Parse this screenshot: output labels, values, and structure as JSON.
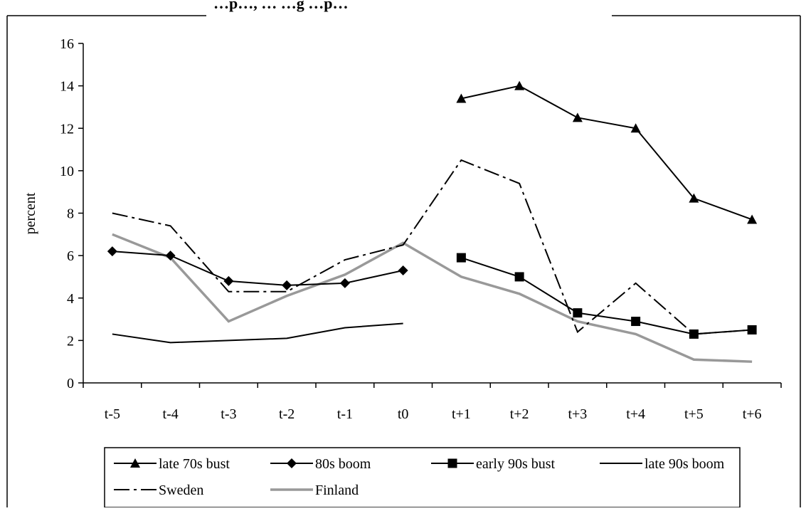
{
  "chart_data": {
    "type": "line",
    "title": "…p…, … …g …p…",
    "xlabel": "",
    "ylabel": "percent",
    "categories": [
      "t-5",
      "t-4",
      "t-3",
      "t-2",
      "t-1",
      "t0",
      "t+1",
      "t+2",
      "t+3",
      "t+4",
      "t+5",
      "t+6"
    ],
    "ylim": [
      0,
      16
    ],
    "yticks": [
      0,
      2,
      4,
      6,
      8,
      10,
      12,
      14,
      16
    ],
    "grid": false,
    "legend_position": "bottom",
    "series": [
      {
        "name": "late 70s bust",
        "marker": "triangle",
        "color": "#000000",
        "style": "solid",
        "values": [
          null,
          null,
          null,
          null,
          null,
          null,
          13.4,
          14.0,
          12.5,
          12.0,
          8.7,
          7.7
        ]
      },
      {
        "name": "80s boom",
        "marker": "diamond",
        "color": "#000000",
        "style": "solid",
        "values": [
          6.2,
          6.0,
          4.8,
          4.6,
          4.7,
          5.3,
          null,
          null,
          null,
          null,
          null,
          null
        ]
      },
      {
        "name": "early 90s bust",
        "marker": "square",
        "color": "#000000",
        "style": "solid",
        "values": [
          null,
          null,
          null,
          null,
          null,
          null,
          5.9,
          5.0,
          3.3,
          2.9,
          2.3,
          2.5
        ]
      },
      {
        "name": "late 90s boom",
        "marker": "none",
        "color": "#000000",
        "style": "solid",
        "values": [
          2.3,
          1.9,
          2.0,
          2.1,
          2.6,
          2.8,
          null,
          null,
          null,
          null,
          null,
          null
        ]
      },
      {
        "name": "Sweden",
        "marker": "none",
        "color": "#000000",
        "style": "dashdot",
        "values": [
          8.0,
          7.4,
          4.3,
          4.3,
          5.8,
          6.5,
          10.5,
          9.4,
          2.4,
          4.7,
          2.3,
          2.5
        ]
      },
      {
        "name": "Finland",
        "marker": "none",
        "color": "#999999",
        "style": "solid-thick",
        "values": [
          7.0,
          5.9,
          2.9,
          4.1,
          5.1,
          6.6,
          5.0,
          4.2,
          2.9,
          2.3,
          1.1,
          1.0
        ]
      }
    ]
  }
}
